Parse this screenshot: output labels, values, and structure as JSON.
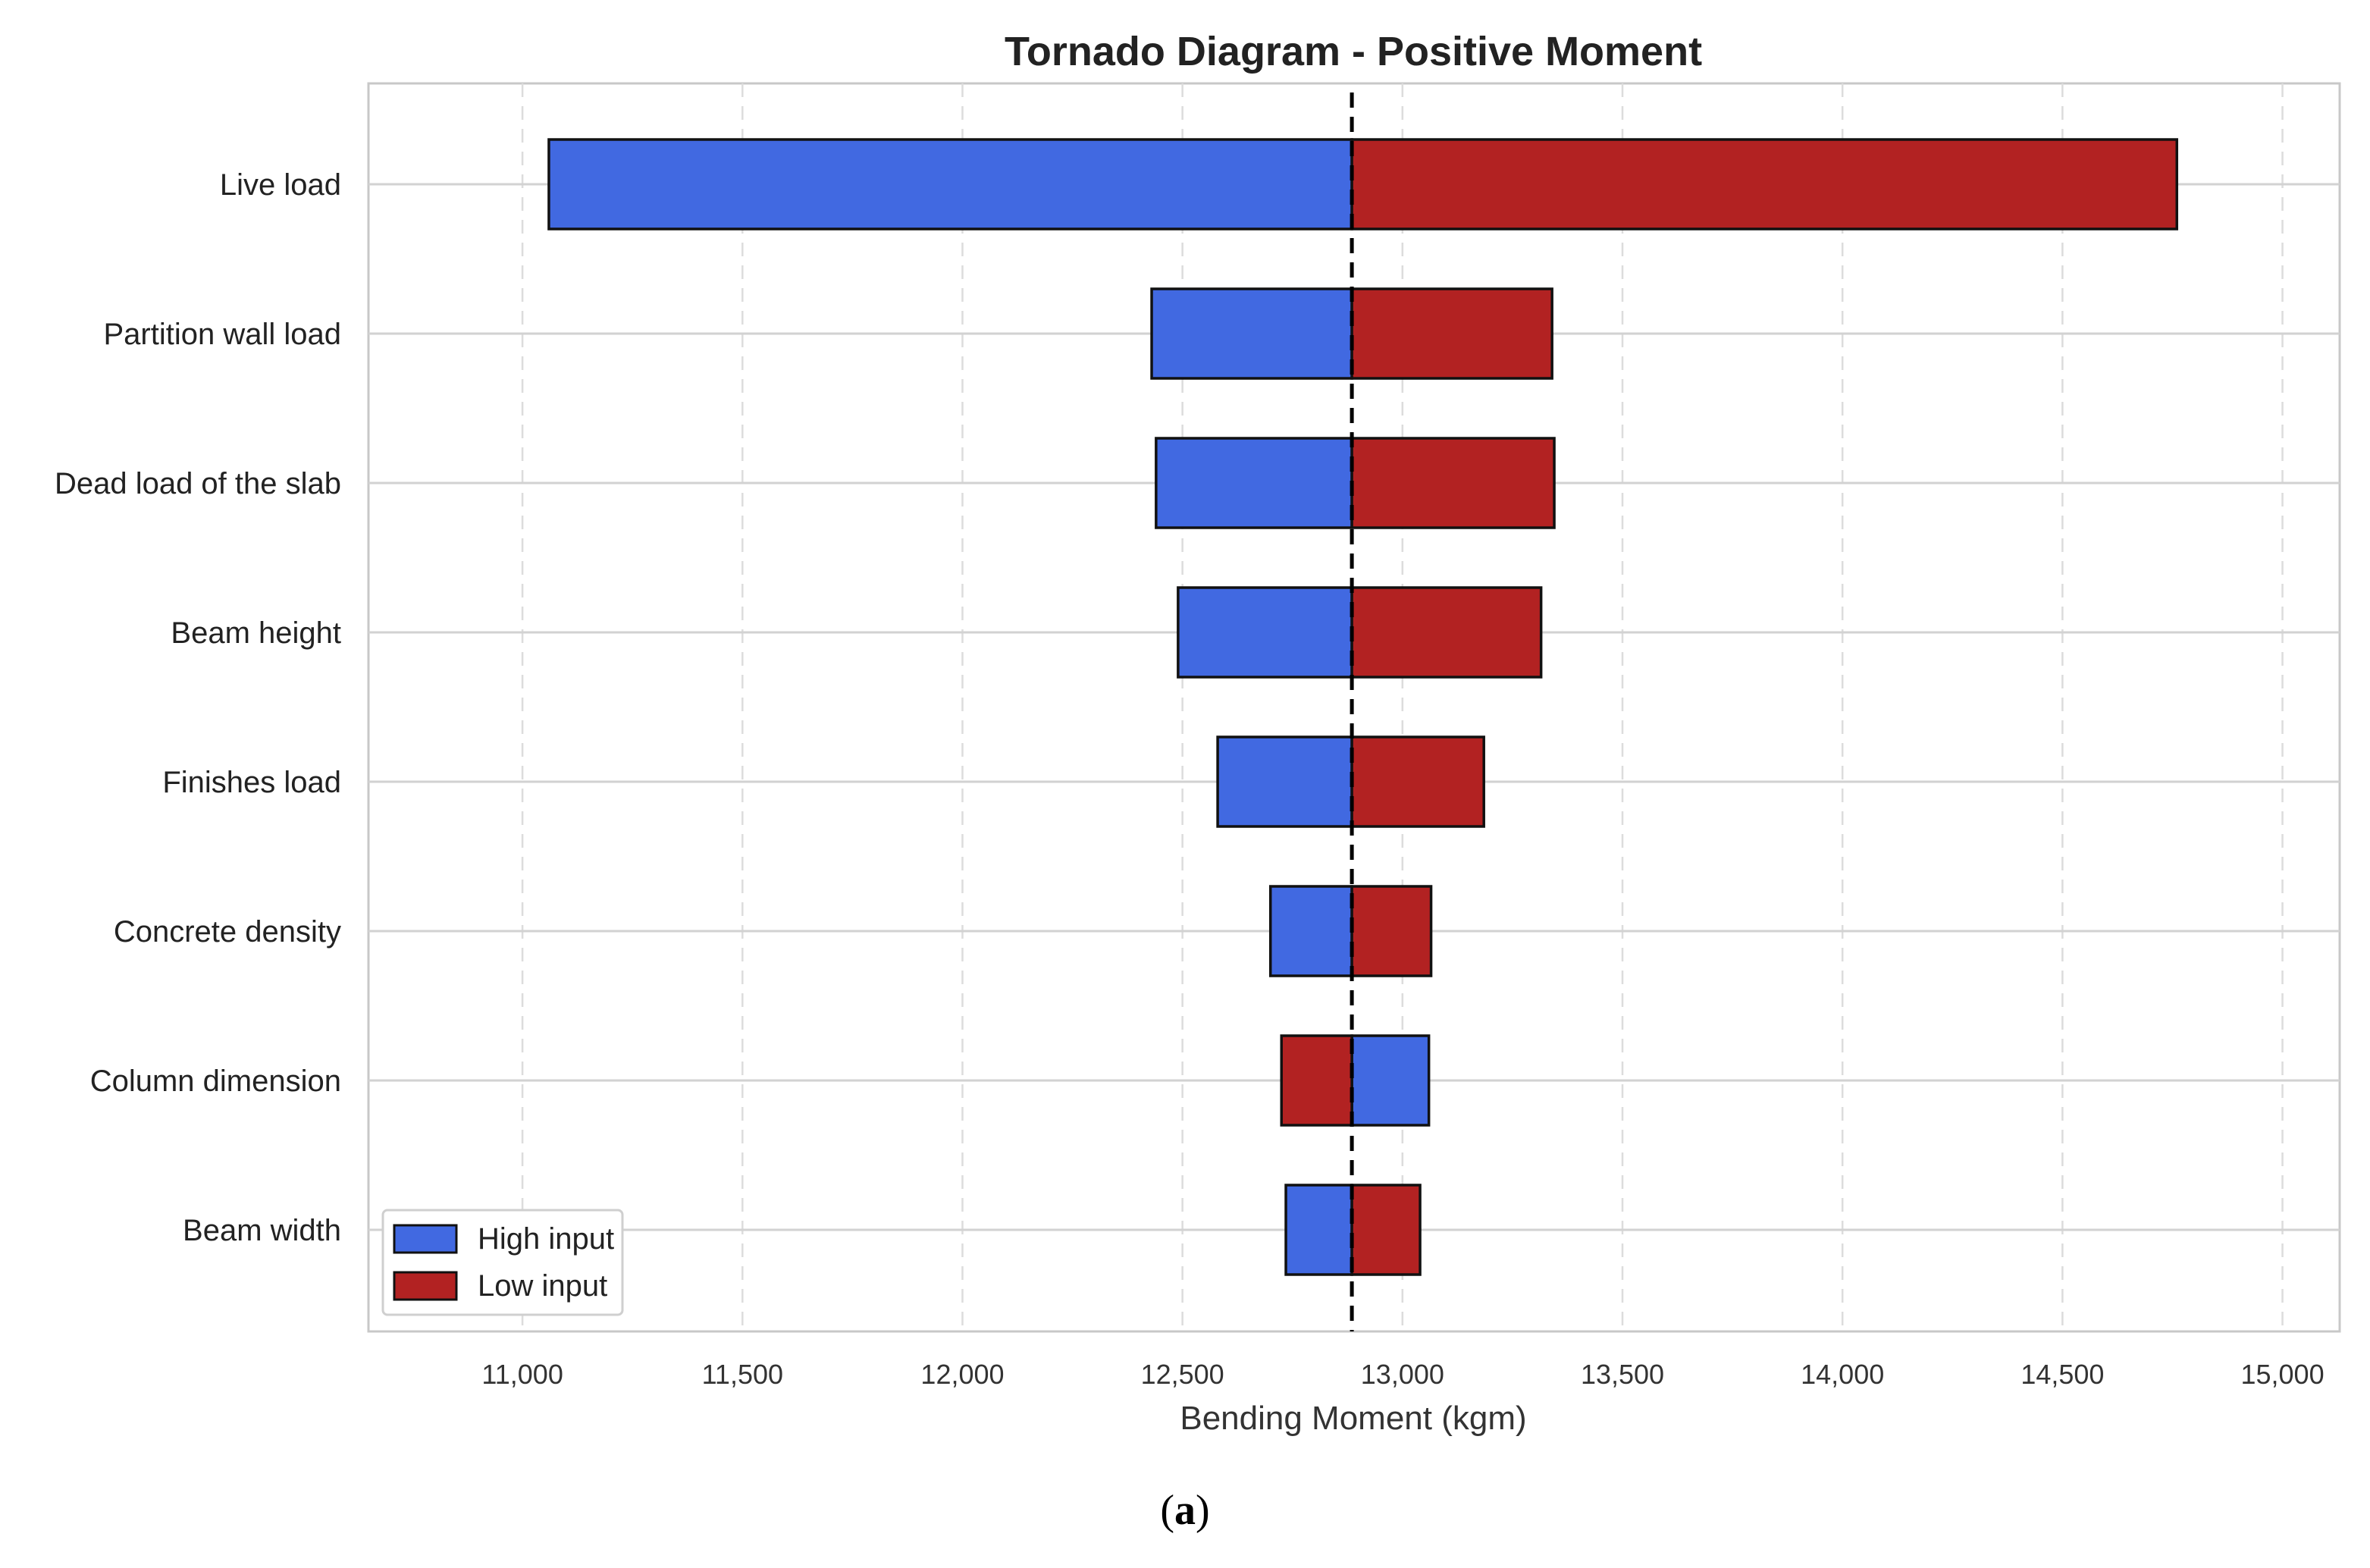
{
  "chart_data": {
    "type": "bar",
    "orientation": "horizontal",
    "title": "Tornado Diagram - Positive Moment",
    "xlabel": "Bending Moment (kgm)",
    "ylabel": "",
    "xlim": [
      10650,
      15130
    ],
    "x_ticks": [
      11000,
      11500,
      12000,
      12500,
      13000,
      13500,
      14000,
      14500,
      15000
    ],
    "x_tick_labels": [
      "11,000",
      "11,500",
      "12,000",
      "12,500",
      "13,000",
      "13,500",
      "14,000",
      "14,500",
      "15,000"
    ],
    "baseline": 12885,
    "categories": [
      "Live load",
      "Partition wall load",
      "Dead load of the slab",
      "Beam height",
      "Finishes load",
      "Concrete density",
      "Column dimension",
      "Beam width"
    ],
    "series": [
      {
        "name": "High input",
        "color": "#4169e1",
        "values": [
          11060,
          12430,
          12440,
          12490,
          12580,
          12700,
          13060,
          12735
        ]
      },
      {
        "name": "Low input",
        "color": "#b22222",
        "values": [
          14760,
          13340,
          13345,
          13315,
          13185,
          13065,
          12725,
          13040
        ]
      }
    ],
    "grid": true,
    "legend_position": "bottom-left"
  },
  "caption": {
    "letter": "a"
  }
}
